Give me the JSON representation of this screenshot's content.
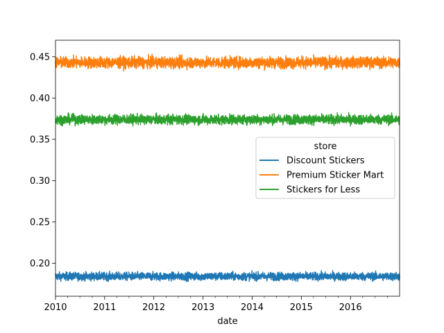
{
  "chart_data": {
    "type": "line",
    "title": "",
    "xlabel": "date",
    "ylabel": "",
    "xlim": [
      "2010-01-01",
      "2016-12-31"
    ],
    "ylim": [
      0.16,
      0.47
    ],
    "x_ticks": [
      "2010",
      "2011",
      "2012",
      "2013",
      "2014",
      "2015",
      "2016"
    ],
    "y_ticks": [
      "0.20",
      "0.25",
      "0.30",
      "0.35",
      "0.40",
      "0.45"
    ],
    "y_tick_values": [
      0.2,
      0.25,
      0.3,
      0.35,
      0.4,
      0.45
    ],
    "grid": false,
    "legend": {
      "title": "store",
      "placement": "center-right"
    },
    "series": [
      {
        "name": "Discount Stickers",
        "color": "#1f77b4",
        "mean": 0.184,
        "noise": 0.0025,
        "range": [
          0.178,
          0.191
        ]
      },
      {
        "name": "Premium Sticker Mart",
        "color": "#ff7f0e",
        "mean": 0.443,
        "noise": 0.0035,
        "range": [
          0.431,
          0.455
        ]
      },
      {
        "name": "Stickers for Less",
        "color": "#2ca02c",
        "mean": 0.374,
        "noise": 0.003,
        "range": [
          0.364,
          0.385
        ]
      }
    ]
  }
}
